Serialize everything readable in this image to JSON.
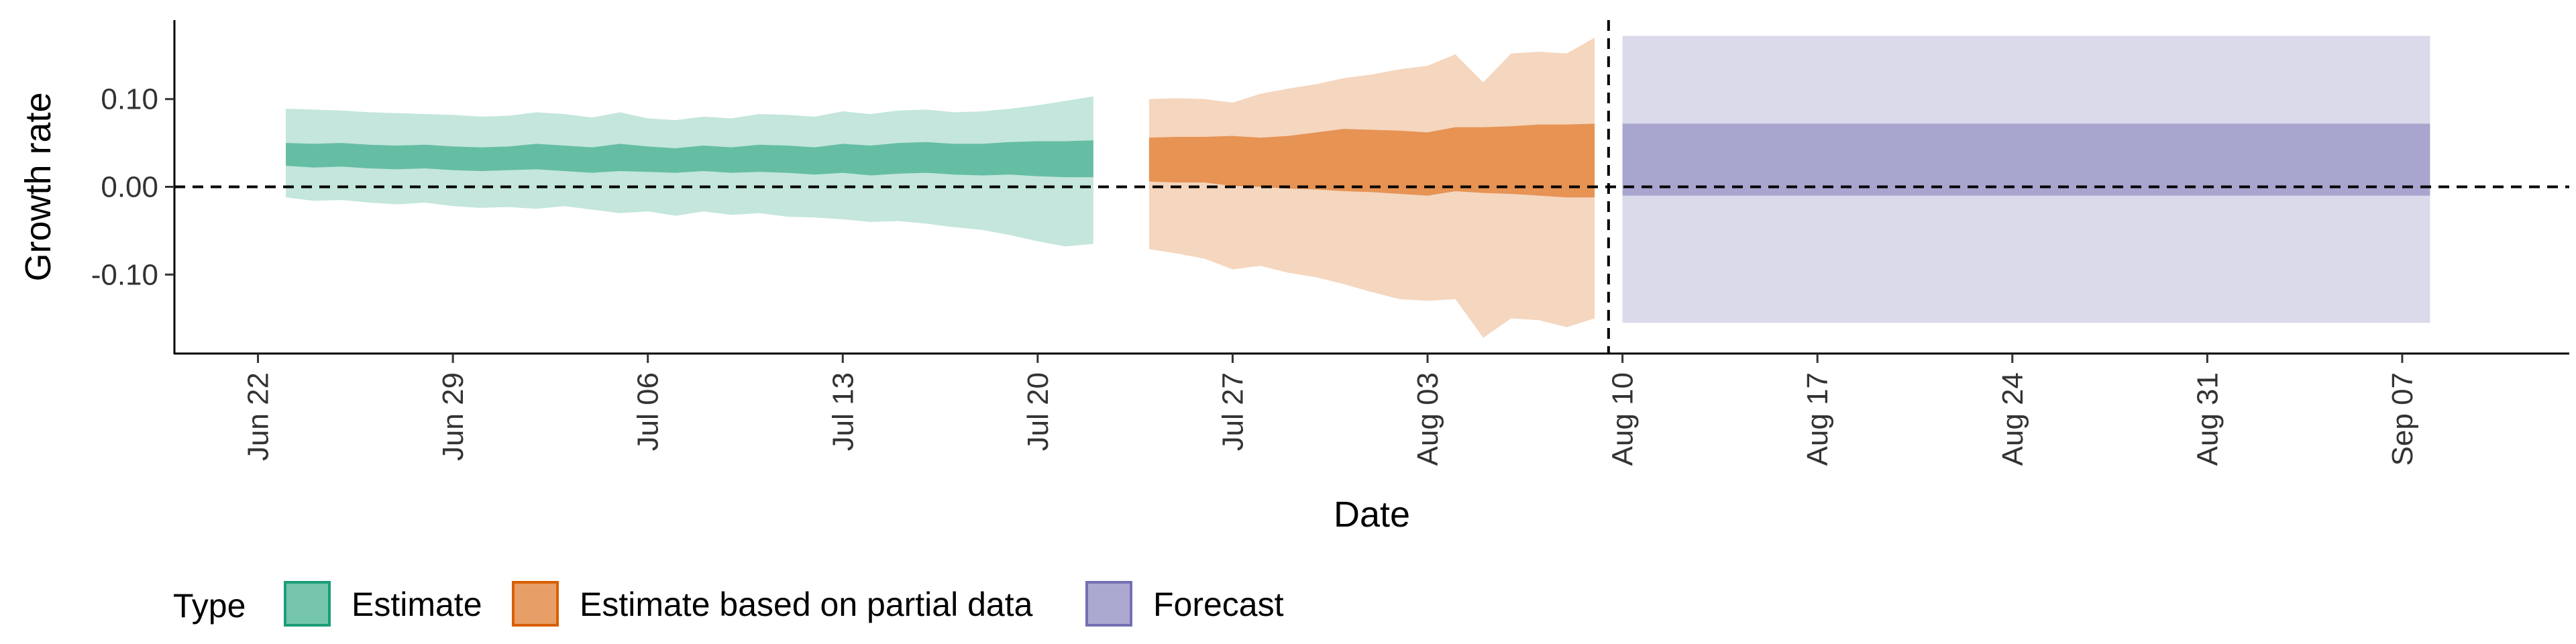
{
  "chart_data": {
    "type": "area",
    "xlabel": "Date",
    "ylabel": "Growth rate",
    "x_ticks": [
      "Jun 22",
      "Jun 29",
      "Jul 06",
      "Jul 13",
      "Jul 20",
      "Jul 27",
      "Aug 03",
      "Aug 10",
      "Aug 17",
      "Aug 24",
      "Aug 31",
      "Sep 07"
    ],
    "xlim": [
      "2020-06-19",
      "2020-09-13"
    ],
    "y_ticks": [
      0.1,
      0.0,
      -0.1
    ],
    "y_tick_labels": [
      "0.10",
      "0.00",
      "-0.10"
    ],
    "ylim": [
      -0.19,
      0.19
    ],
    "reference_lines": {
      "horizontal_y": 0.0,
      "vertical_date": "2020-08-09"
    },
    "grid": false,
    "legend": {
      "title": "Type",
      "position": "bottom",
      "entries": [
        "Estimate",
        "Estimate based on partial data",
        "Forecast"
      ]
    },
    "colors": {
      "Estimate": "#1b9e77",
      "Estimate based on partial data": "#d95f02",
      "Forecast": "#7570b3"
    },
    "series": [
      {
        "name": "Estimate",
        "x": [
          "2020-06-23",
          "2020-06-24",
          "2020-06-25",
          "2020-06-26",
          "2020-06-27",
          "2020-06-28",
          "2020-06-29",
          "2020-06-30",
          "2020-07-01",
          "2020-07-02",
          "2020-07-03",
          "2020-07-04",
          "2020-07-05",
          "2020-07-06",
          "2020-07-07",
          "2020-07-08",
          "2020-07-09",
          "2020-07-10",
          "2020-07-11",
          "2020-07-12",
          "2020-07-13",
          "2020-07-14",
          "2020-07-15",
          "2020-07-16",
          "2020-07-17",
          "2020-07-18",
          "2020-07-19",
          "2020-07-20",
          "2020-07-21",
          "2020-07-22"
        ],
        "lower90": [
          -0.012,
          -0.016,
          -0.015,
          -0.018,
          -0.02,
          -0.018,
          -0.022,
          -0.024,
          -0.023,
          -0.025,
          -0.022,
          -0.026,
          -0.03,
          -0.028,
          -0.033,
          -0.028,
          -0.032,
          -0.03,
          -0.034,
          -0.035,
          -0.037,
          -0.04,
          -0.039,
          -0.042,
          -0.046,
          -0.049,
          -0.055,
          -0.062,
          -0.068,
          -0.065
        ],
        "lower50": [
          0.024,
          0.022,
          0.023,
          0.021,
          0.02,
          0.021,
          0.019,
          0.018,
          0.019,
          0.02,
          0.018,
          0.016,
          0.018,
          0.017,
          0.016,
          0.018,
          0.016,
          0.017,
          0.016,
          0.014,
          0.016,
          0.013,
          0.015,
          0.016,
          0.014,
          0.013,
          0.014,
          0.012,
          0.011,
          0.011
        ],
        "median": [
          0.037,
          0.035,
          0.036,
          0.034,
          0.033,
          0.034,
          0.032,
          0.031,
          0.032,
          0.034,
          0.032,
          0.03,
          0.033,
          0.031,
          0.03,
          0.032,
          0.03,
          0.032,
          0.031,
          0.029,
          0.032,
          0.03,
          0.032,
          0.033,
          0.031,
          0.031,
          0.032,
          0.032,
          0.031,
          0.032
        ],
        "upper50": [
          0.05,
          0.049,
          0.05,
          0.048,
          0.047,
          0.048,
          0.046,
          0.045,
          0.046,
          0.049,
          0.047,
          0.045,
          0.049,
          0.046,
          0.044,
          0.047,
          0.045,
          0.048,
          0.047,
          0.045,
          0.049,
          0.047,
          0.05,
          0.051,
          0.049,
          0.049,
          0.051,
          0.052,
          0.052,
          0.053
        ],
        "upper90": [
          0.089,
          0.088,
          0.087,
          0.085,
          0.084,
          0.083,
          0.082,
          0.08,
          0.081,
          0.085,
          0.083,
          0.079,
          0.085,
          0.078,
          0.076,
          0.08,
          0.078,
          0.083,
          0.082,
          0.08,
          0.086,
          0.083,
          0.087,
          0.088,
          0.085,
          0.086,
          0.089,
          0.093,
          0.098,
          0.103
        ]
      },
      {
        "name": "Estimate based on partial data",
        "x": [
          "2020-07-24",
          "2020-07-25",
          "2020-07-26",
          "2020-07-27",
          "2020-07-28",
          "2020-07-29",
          "2020-07-30",
          "2020-07-31",
          "2020-08-01",
          "2020-08-02",
          "2020-08-03",
          "2020-08-04",
          "2020-08-05",
          "2020-08-06",
          "2020-08-07",
          "2020-08-08",
          "2020-08-09"
        ],
        "lower90": [
          -0.071,
          -0.076,
          -0.082,
          -0.094,
          -0.09,
          -0.098,
          -0.103,
          -0.111,
          -0.12,
          -0.128,
          -0.13,
          -0.128,
          -0.172,
          -0.15,
          -0.152,
          -0.16,
          -0.15
        ],
        "lower50": [
          0.006,
          0.005,
          0.005,
          0.001,
          0.0,
          -0.002,
          -0.003,
          -0.005,
          -0.006,
          -0.008,
          -0.01,
          -0.005,
          -0.007,
          -0.008,
          -0.01,
          -0.012,
          -0.012
        ],
        "median": [
          0.031,
          0.031,
          0.031,
          0.03,
          0.03,
          0.03,
          0.031,
          0.032,
          0.031,
          0.03,
          0.028,
          0.032,
          0.031,
          0.031,
          0.031,
          0.03,
          0.03
        ],
        "upper50": [
          0.056,
          0.057,
          0.057,
          0.058,
          0.056,
          0.058,
          0.062,
          0.066,
          0.065,
          0.064,
          0.062,
          0.068,
          0.068,
          0.069,
          0.071,
          0.071,
          0.072
        ],
        "upper90": [
          0.1,
          0.101,
          0.1,
          0.096,
          0.106,
          0.112,
          0.117,
          0.124,
          0.128,
          0.134,
          0.138,
          0.151,
          0.119,
          0.152,
          0.154,
          0.152,
          0.17
        ]
      },
      {
        "name": "Forecast",
        "x": [
          "2020-08-10",
          "2020-09-08"
        ],
        "lower90": [
          -0.155,
          -0.155
        ],
        "lower50": [
          -0.01,
          -0.01
        ],
        "upper50": [
          0.072,
          0.072
        ],
        "upper90": [
          0.172,
          0.172
        ]
      }
    ]
  }
}
